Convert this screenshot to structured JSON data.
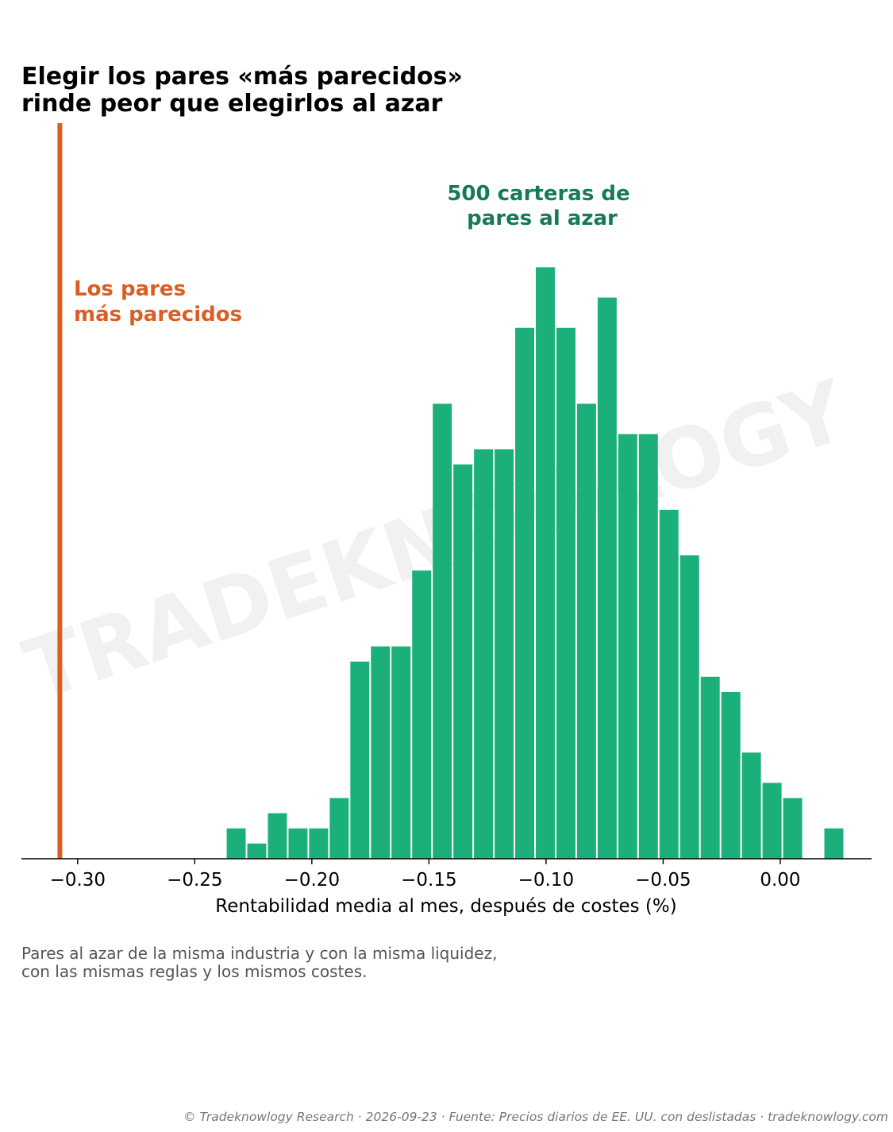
{
  "title": [
    "Elegir los pares «más parecidos»",
    "rinde peor que elegirlos al azar"
  ],
  "chart_data": {
    "type": "bar",
    "xlabel": "Rentabilidad media al mes, después de costes (%)",
    "ylabel": "",
    "xlim": [
      -0.324,
      0.039
    ],
    "ylim": [
      0,
      48.5
    ],
    "xticks": [
      -0.3,
      -0.25,
      -0.2,
      -0.15,
      -0.1,
      -0.05,
      0.0
    ],
    "xtick_labels": [
      "−0.30",
      "−0.25",
      "−0.20",
      "−0.15",
      "−0.10",
      "−0.05",
      "0.00"
    ],
    "bin_width": 0.0088,
    "bins": [
      {
        "start": -0.2367,
        "count": 2
      },
      {
        "start": -0.2279,
        "count": 1
      },
      {
        "start": -0.2191,
        "count": 3
      },
      {
        "start": -0.2103,
        "count": 2
      },
      {
        "start": -0.2015,
        "count": 2
      },
      {
        "start": -0.1927,
        "count": 4
      },
      {
        "start": -0.1839,
        "count": 13
      },
      {
        "start": -0.1751,
        "count": 14
      },
      {
        "start": -0.1663,
        "count": 14
      },
      {
        "start": -0.1575,
        "count": 19
      },
      {
        "start": -0.1487,
        "count": 30
      },
      {
        "start": -0.1399,
        "count": 26
      },
      {
        "start": -0.1311,
        "count": 27
      },
      {
        "start": -0.1223,
        "count": 27
      },
      {
        "start": -0.1135,
        "count": 35
      },
      {
        "start": -0.1047,
        "count": 39
      },
      {
        "start": -0.0959,
        "count": 35
      },
      {
        "start": -0.0871,
        "count": 30
      },
      {
        "start": -0.0783,
        "count": 37
      },
      {
        "start": -0.0695,
        "count": 28
      },
      {
        "start": -0.0607,
        "count": 28
      },
      {
        "start": -0.0519,
        "count": 23
      },
      {
        "start": -0.0431,
        "count": 20
      },
      {
        "start": -0.0343,
        "count": 12
      },
      {
        "start": -0.0255,
        "count": 11
      },
      {
        "start": -0.0167,
        "count": 7
      },
      {
        "start": -0.0079,
        "count": 5
      },
      {
        "start": 0.0009,
        "count": 4
      },
      {
        "start": 0.0097,
        "count": 0
      },
      {
        "start": 0.0185,
        "count": 2
      }
    ],
    "reference_line": {
      "x": -0.3076,
      "label": [
        "Los pares",
        "más parecidos"
      ],
      "color": "#d95f23"
    },
    "annotation": {
      "label": [
        "500 carteras de",
        "pares al azar"
      ],
      "color": "#157a55"
    },
    "bar_color": "#1bb07a",
    "grid": false,
    "legend": "none"
  },
  "watermark": "TRADEKNOWLOGY",
  "caption": [
    "Pares al azar de la misma industria y con la misma liquidez,",
    "con las mismas reglas y los mismos costes."
  ],
  "footer": "© Tradeknowlogy Research   ·   2026-09-23   ·   Fuente: Precios diarios de EE. UU. con deslistadas   ·   tradeknowlogy.com"
}
